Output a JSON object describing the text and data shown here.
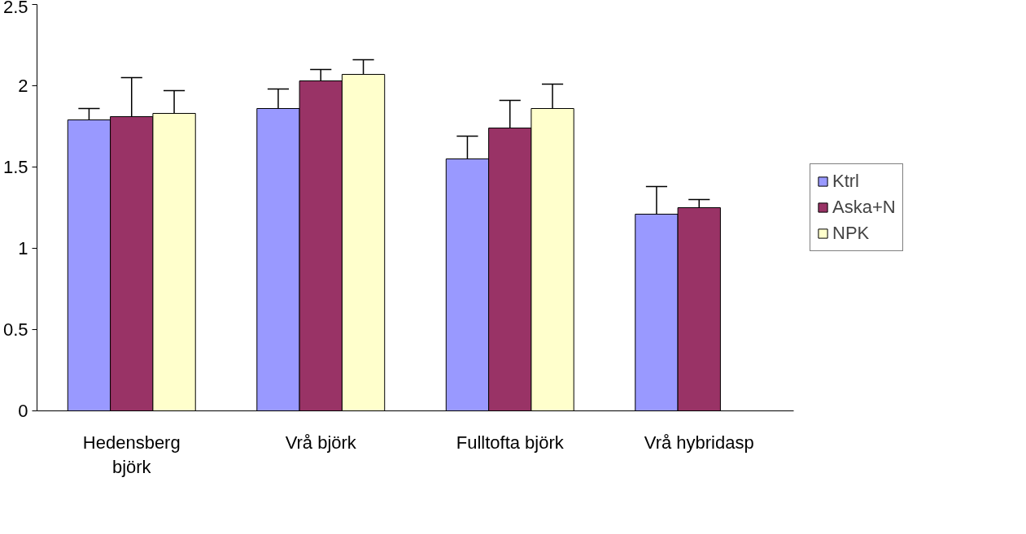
{
  "chart_data": {
    "type": "bar",
    "categories": [
      "Hedensberg björk",
      "Vrå björk",
      "Fulltofta björk",
      "Vrå hybridasp"
    ],
    "series": [
      {
        "name": "Ktrl",
        "color": "#9999ff",
        "values": [
          1.79,
          1.86,
          1.55,
          1.21
        ],
        "errors": [
          [
            1.79,
            1.86
          ],
          [
            1.86,
            1.98
          ],
          [
            1.55,
            1.69
          ],
          [
            1.21,
            1.38
          ]
        ]
      },
      {
        "name": "Aska+N",
        "color": "#993366",
        "values": [
          1.81,
          2.03,
          1.74,
          1.25
        ],
        "errors": [
          [
            1.81,
            2.05
          ],
          [
            2.03,
            2.1
          ],
          [
            1.74,
            1.91
          ],
          [
            1.25,
            1.3
          ]
        ]
      },
      {
        "name": "NPK",
        "color": "#ffffcc",
        "values": [
          1.83,
          2.07,
          1.86,
          null
        ],
        "errors": [
          [
            1.83,
            1.97
          ],
          [
            2.07,
            2.16
          ],
          [
            1.86,
            2.01
          ],
          null
        ]
      }
    ],
    "ylim": [
      0,
      2.5
    ],
    "yticks": [
      0,
      0.5,
      1,
      1.5,
      2,
      2.5
    ],
    "grid": false,
    "legend": "right"
  }
}
